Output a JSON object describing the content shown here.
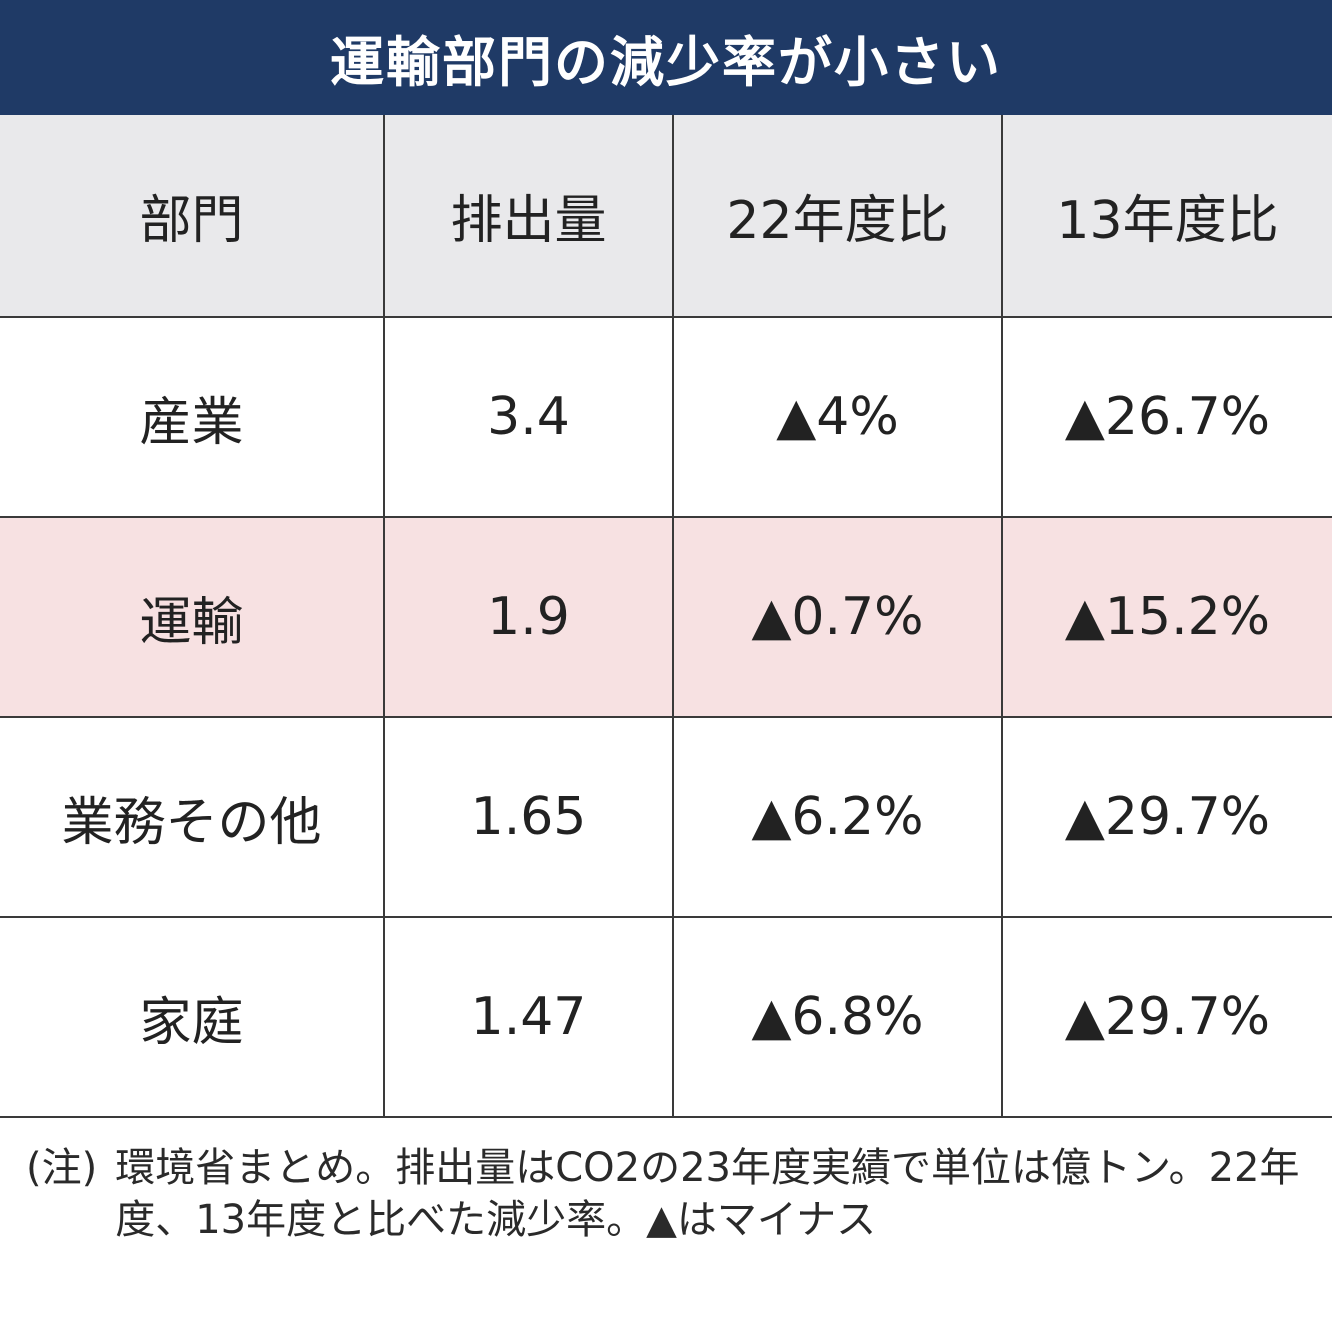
{
  "title": "運輸部門の減少率が小さい",
  "table": {
    "headers": [
      "部門",
      "排出量",
      "22年度比",
      "13年度比"
    ],
    "rows": [
      {
        "sector": "産業",
        "emissions": "3.4",
        "vs_fy22": "▲4%",
        "vs_fy13": "▲26.7%"
      },
      {
        "sector": "運輸",
        "emissions": "1.9",
        "vs_fy22": "▲0.7%",
        "vs_fy13": "▲15.2%"
      },
      {
        "sector": "業務その他",
        "emissions": "1.65",
        "vs_fy22": "▲6.2%",
        "vs_fy13": "▲29.7%"
      },
      {
        "sector": "家庭",
        "emissions": "1.47",
        "vs_fy22": "▲6.8%",
        "vs_fy13": "▲29.7%"
      }
    ]
  },
  "note": {
    "mark": "(注)",
    "text": "環境省まとめ。排出量はCO2の23年度実績で単位は億トン。22年度、13年度と比べた減少率。▲はマイナス"
  },
  "colors": {
    "title_background": "#1f3a66",
    "header_background": "#e9e9eb",
    "highlight_row_background": "#f7e1e2"
  }
}
